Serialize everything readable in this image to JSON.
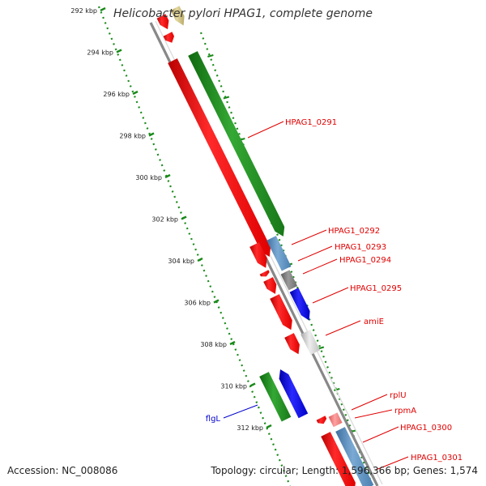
{
  "title": "Helicobacter pylori HPAG1, complete genome",
  "footer": {
    "accession": "Accession: NC_008086",
    "summary": "Topology: circular; Length: 1,596,366 bp; Genes: 1,574"
  },
  "colors": {
    "ruler": "#1a8a1a",
    "backbone": "#999999",
    "cds_reverse": "#ff0000",
    "cds_forward_green": "#1f8f1f",
    "cds_steel": "#5a8fc0",
    "cds_blue": "#1010e0",
    "cds_gray": "#8a8a8a",
    "cds_lightgray": "#cfcfcf",
    "cds_olive": "#c9bb7a",
    "cds_pink": "#f08080",
    "label_red": "#e00000",
    "label_blue": "#0000cc"
  },
  "ticks": [
    "292 kbp",
    "294 kbp",
    "296 kbp",
    "298 kbp",
    "300 kbp",
    "302 kbp",
    "304 kbp",
    "306 kbp",
    "308 kbp",
    "310 kbp",
    "312 kbp"
  ],
  "gene_labels": [
    {
      "text": "HPAG1_0291",
      "color": "red"
    },
    {
      "text": "HPAG1_0292",
      "color": "red"
    },
    {
      "text": "HPAG1_0293",
      "color": "red"
    },
    {
      "text": "HPAG1_0294",
      "color": "red"
    },
    {
      "text": "HPAG1_0295",
      "color": "red"
    },
    {
      "text": "amiE",
      "color": "red"
    },
    {
      "text": "rplU",
      "color": "red"
    },
    {
      "text": "rpmA",
      "color": "red"
    },
    {
      "text": "HPAG1_0300",
      "color": "red"
    },
    {
      "text": "HPAG1_0301",
      "color": "red"
    },
    {
      "text": "flgL",
      "color": "blue"
    }
  ]
}
